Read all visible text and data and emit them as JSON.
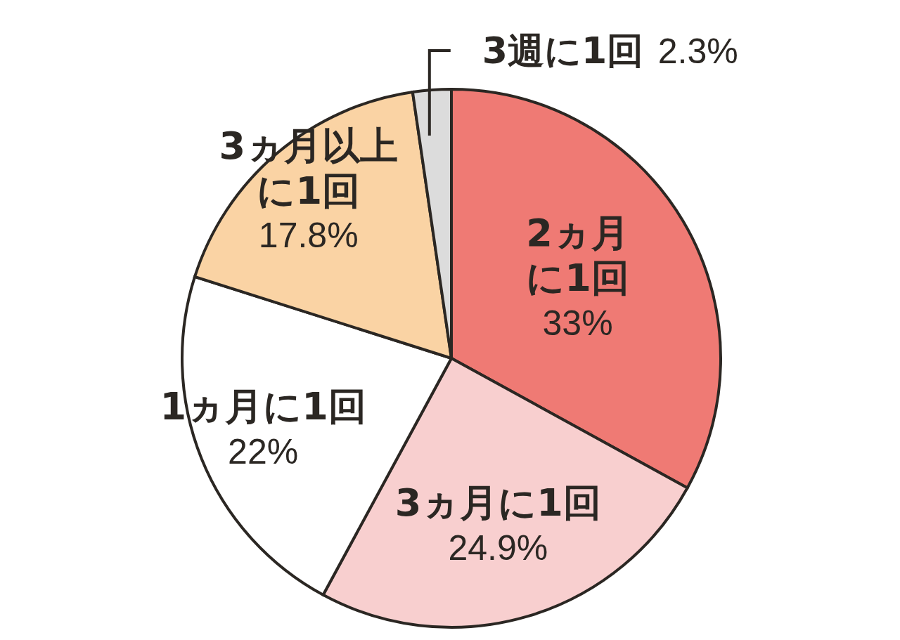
{
  "chart_data": {
    "type": "pie",
    "categories": [
      "2ヵ月に1回",
      "3ヵ月に1回",
      "1ヵ月に1回",
      "3ヵ月以上に1回",
      "3週に1回"
    ],
    "values": [
      33,
      24.9,
      22,
      17.8,
      2.3
    ],
    "value_labels": [
      "33%",
      "24.9%",
      "22%",
      "17.8%",
      "2.3%"
    ],
    "colors": [
      "#ef7a74",
      "#f8cfcf",
      "#ffffff",
      "#fad3a4",
      "#dcdcdc"
    ]
  }
}
